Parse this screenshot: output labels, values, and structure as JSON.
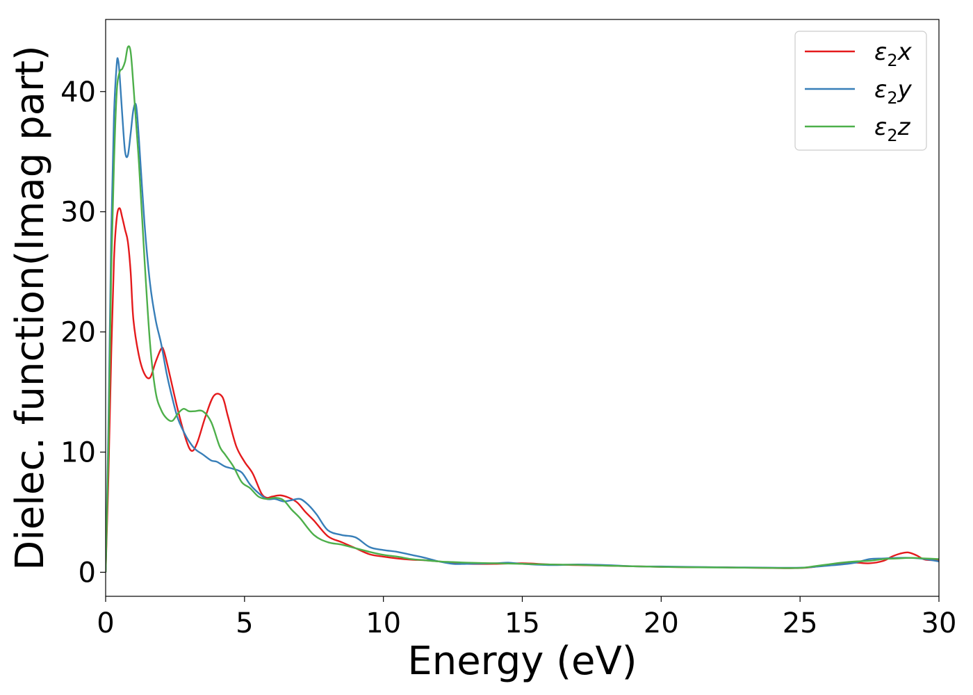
{
  "chart_data": {
    "type": "line",
    "title": "",
    "xlabel": "Energy (eV)",
    "ylabel": "Dielec. function(Imag part)",
    "xlim": [
      0,
      30
    ],
    "ylim": [
      -2,
      46
    ],
    "xticks": [
      0,
      5,
      10,
      15,
      20,
      25,
      30
    ],
    "yticks": [
      0,
      10,
      20,
      30,
      40
    ],
    "grid": false,
    "legend_position": "top-right",
    "series": [
      {
        "name": "ε₂x",
        "legend_base": "ε",
        "legend_sub": "2",
        "legend_var": "x",
        "color": "#e41a1c",
        "x": [
          0,
          0.1,
          0.2,
          0.3,
          0.4,
          0.5,
          0.6,
          0.7,
          0.8,
          0.9,
          1.0,
          1.2,
          1.4,
          1.6,
          1.8,
          2.0,
          2.1,
          2.3,
          2.6,
          2.9,
          3.1,
          3.3,
          3.6,
          3.9,
          4.2,
          4.4,
          4.7,
          5.0,
          5.3,
          5.6,
          5.8,
          6.0,
          6.3,
          6.6,
          6.9,
          7.2,
          7.5,
          8.0,
          8.5,
          9.0,
          9.5,
          10.0,
          10.5,
          11.0,
          11.5,
          12.0,
          12.5,
          13.0,
          14.0,
          15.0,
          16.0,
          17.0,
          18.0,
          19.0,
          20.0,
          21.0,
          22.0,
          23.0,
          24.0,
          25.0,
          25.5,
          26.0,
          26.5,
          27.0,
          27.5,
          28.0,
          28.3,
          28.6,
          28.9,
          29.2,
          29.5,
          30.0
        ],
        "y": [
          0,
          8,
          18,
          26,
          29.5,
          30.3,
          29.5,
          28.5,
          27.5,
          25,
          21,
          18,
          16.5,
          16.2,
          17.5,
          18.6,
          18.4,
          16.5,
          13.5,
          11,
          10.1,
          10.8,
          13,
          14.7,
          14.6,
          13,
          10.5,
          9.2,
          8.2,
          6.6,
          6.2,
          6.3,
          6.4,
          6.2,
          5.8,
          5.0,
          4.3,
          3.0,
          2.5,
          2.0,
          1.5,
          1.3,
          1.15,
          1.05,
          1.0,
          0.9,
          0.75,
          0.7,
          0.7,
          0.75,
          0.65,
          0.6,
          0.55,
          0.5,
          0.45,
          0.42,
          0.42,
          0.38,
          0.35,
          0.35,
          0.45,
          0.6,
          0.75,
          0.8,
          0.75,
          0.95,
          1.3,
          1.55,
          1.65,
          1.4,
          1.05,
          1.0
        ]
      },
      {
        "name": "ε₂y",
        "legend_base": "ε",
        "legend_sub": "2",
        "legend_var": "y",
        "color": "#377eb8",
        "x": [
          0,
          0.1,
          0.2,
          0.3,
          0.4,
          0.45,
          0.5,
          0.6,
          0.7,
          0.8,
          0.9,
          1.0,
          1.1,
          1.2,
          1.4,
          1.6,
          1.8,
          2.0,
          2.2,
          2.4,
          2.6,
          2.9,
          3.2,
          3.5,
          3.8,
          4.0,
          4.3,
          4.6,
          4.9,
          5.2,
          5.5,
          5.8,
          6.1,
          6.4,
          6.7,
          7.0,
          7.3,
          7.6,
          8.0,
          8.5,
          9.0,
          9.5,
          10.0,
          10.5,
          11.0,
          11.5,
          12.0,
          12.5,
          13.0,
          14.0,
          14.5,
          15.0,
          16.0,
          17.0,
          18.0,
          19.0,
          20.0,
          21.0,
          22.0,
          23.0,
          24.0,
          25.0,
          25.5,
          26.0,
          26.5,
          27.0,
          27.5,
          28.0,
          28.5,
          29.0,
          29.5,
          30.0
        ],
        "y": [
          0,
          12,
          28,
          38,
          42.3,
          42.6,
          41.5,
          38,
          35,
          34.7,
          36.5,
          38.5,
          38.8,
          36,
          29,
          24,
          21,
          19,
          16.5,
          14.5,
          12.8,
          11.3,
          10.3,
          9.8,
          9.3,
          9.2,
          8.8,
          8.6,
          8.3,
          7.3,
          6.6,
          6.1,
          6.1,
          5.9,
          6.0,
          6.1,
          5.6,
          4.8,
          3.5,
          3.1,
          2.9,
          2.1,
          1.85,
          1.7,
          1.45,
          1.2,
          0.9,
          0.7,
          0.7,
          0.75,
          0.8,
          0.7,
          0.6,
          0.65,
          0.6,
          0.5,
          0.48,
          0.45,
          0.42,
          0.4,
          0.38,
          0.38,
          0.45,
          0.55,
          0.65,
          0.8,
          1.1,
          1.15,
          1.2,
          1.2,
          1.1,
          0.9
        ]
      },
      {
        "name": "ε₂z",
        "legend_base": "ε",
        "legend_sub": "2",
        "legend_var": "z",
        "color": "#4daf4a",
        "x": [
          0,
          0.1,
          0.2,
          0.3,
          0.4,
          0.5,
          0.6,
          0.7,
          0.8,
          0.9,
          1.0,
          1.2,
          1.4,
          1.6,
          1.8,
          2.0,
          2.2,
          2.4,
          2.6,
          2.8,
          3.0,
          3.2,
          3.5,
          3.8,
          4.1,
          4.3,
          4.6,
          4.9,
          5.2,
          5.5,
          5.8,
          6.1,
          6.4,
          6.7,
          7.0,
          7.5,
          8.0,
          8.5,
          9.0,
          9.5,
          10.0,
          10.5,
          11.0,
          11.5,
          12.0,
          12.5,
          13.0,
          14.0,
          15.0,
          16.0,
          17.0,
          18.0,
          19.0,
          20.0,
          21.0,
          22.0,
          23.0,
          24.0,
          25.0,
          25.5,
          26.0,
          26.5,
          27.0,
          27.5,
          28.0,
          28.5,
          29.0,
          29.5,
          30.0
        ],
        "y": [
          0,
          10,
          25,
          34,
          40,
          41.6,
          41.9,
          42.5,
          43.7,
          43.3,
          40.5,
          34,
          26,
          19,
          15,
          13.5,
          12.8,
          12.6,
          13.2,
          13.6,
          13.4,
          13.4,
          13.4,
          12.5,
          10.5,
          9.8,
          8.8,
          7.5,
          7.0,
          6.3,
          6.1,
          6.2,
          6.0,
          5.2,
          4.5,
          3.1,
          2.5,
          2.3,
          2.0,
          1.7,
          1.45,
          1.3,
          1.1,
          1.0,
          0.9,
          0.85,
          0.8,
          0.75,
          0.7,
          0.65,
          0.62,
          0.55,
          0.5,
          0.45,
          0.42,
          0.4,
          0.38,
          0.36,
          0.36,
          0.5,
          0.65,
          0.8,
          0.9,
          0.95,
          1.1,
          1.15,
          1.2,
          1.15,
          1.1
        ]
      }
    ]
  }
}
